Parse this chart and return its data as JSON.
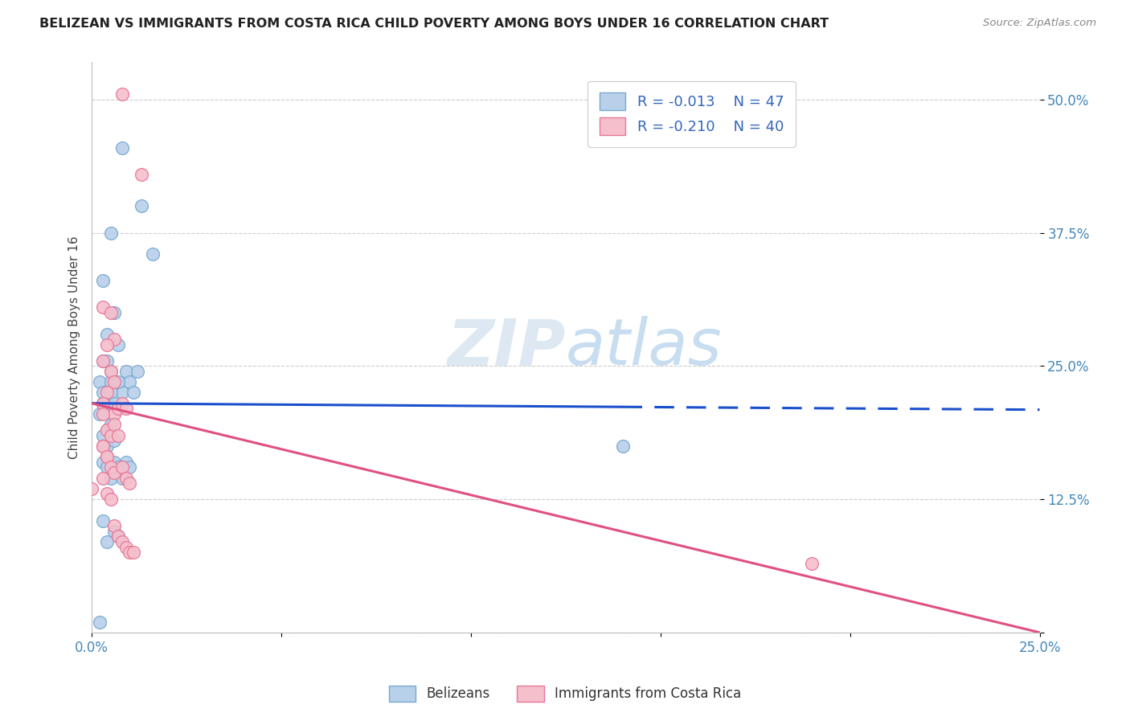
{
  "title": "BELIZEAN VS IMMIGRANTS FROM COSTA RICA CHILD POVERTY AMONG BOYS UNDER 16 CORRELATION CHART",
  "source": "Source: ZipAtlas.com",
  "xmin": 0.0,
  "xmax": 0.25,
  "ymin": 0.0,
  "ymax": 0.535,
  "blue_label": "Belizeans",
  "pink_label": "Immigrants from Costa Rica",
  "blue_R": "-0.013",
  "blue_N": "47",
  "pink_R": "-0.210",
  "pink_N": "40",
  "ylabel": "Child Poverty Among Boys Under 16",
  "blue_color": "#b8d0ea",
  "blue_edge": "#7aaad0",
  "pink_color": "#f5bfcc",
  "pink_edge": "#e87898",
  "blue_line_color": "#1a4fcc",
  "pink_line_color": "#e05080",
  "background_color": "#ffffff",
  "grid_color": "#cccccc",
  "blue_line_solid_end": 0.14,
  "blue_line_start_y": 0.215,
  "blue_line_end_y": 0.209,
  "pink_line_start_y": 0.215,
  "pink_line_end_y": 0.0,
  "blue_dots_x": [
    0.008,
    0.013,
    0.016,
    0.005,
    0.003,
    0.004,
    0.006,
    0.007,
    0.003,
    0.004,
    0.005,
    0.006,
    0.008,
    0.009,
    0.01,
    0.011,
    0.012,
    0.002,
    0.003,
    0.004,
    0.005,
    0.003,
    0.004,
    0.005,
    0.006,
    0.007,
    0.002,
    0.003,
    0.004,
    0.005,
    0.003,
    0.004,
    0.006,
    0.003,
    0.004,
    0.005,
    0.006,
    0.007,
    0.008,
    0.009,
    0.01,
    0.003,
    0.004,
    0.006,
    0.007,
    0.14,
    0.002
  ],
  "blue_dots_y": [
    0.455,
    0.4,
    0.355,
    0.375,
    0.33,
    0.28,
    0.3,
    0.27,
    0.255,
    0.255,
    0.245,
    0.235,
    0.225,
    0.245,
    0.235,
    0.225,
    0.245,
    0.235,
    0.225,
    0.215,
    0.235,
    0.215,
    0.215,
    0.225,
    0.215,
    0.235,
    0.205,
    0.215,
    0.19,
    0.195,
    0.185,
    0.175,
    0.18,
    0.16,
    0.155,
    0.145,
    0.16,
    0.155,
    0.145,
    0.16,
    0.155,
    0.105,
    0.085,
    0.095,
    0.09,
    0.175,
    0.01
  ],
  "pink_dots_x": [
    0.008,
    0.013,
    0.003,
    0.005,
    0.006,
    0.004,
    0.003,
    0.005,
    0.006,
    0.004,
    0.003,
    0.006,
    0.007,
    0.008,
    0.009,
    0.003,
    0.004,
    0.005,
    0.006,
    0.003,
    0.004,
    0.003,
    0.004,
    0.005,
    0.006,
    0.007,
    0.008,
    0.009,
    0.01,
    0.003,
    0.004,
    0.005,
    0.006,
    0.007,
    0.008,
    0.009,
    0.01,
    0.011,
    0.19,
    0.0
  ],
  "pink_dots_y": [
    0.505,
    0.43,
    0.305,
    0.3,
    0.275,
    0.27,
    0.255,
    0.245,
    0.235,
    0.225,
    0.215,
    0.205,
    0.21,
    0.215,
    0.21,
    0.205,
    0.19,
    0.185,
    0.195,
    0.175,
    0.165,
    0.175,
    0.165,
    0.155,
    0.15,
    0.185,
    0.155,
    0.145,
    0.14,
    0.145,
    0.13,
    0.125,
    0.1,
    0.09,
    0.085,
    0.08,
    0.075,
    0.075,
    0.065,
    0.135
  ]
}
